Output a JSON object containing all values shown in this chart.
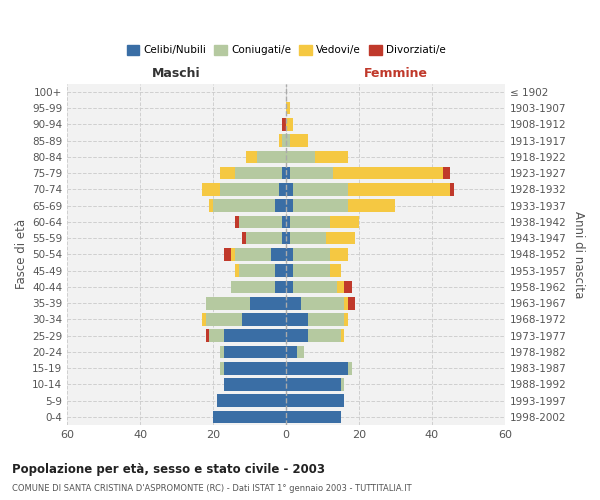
{
  "age_groups": [
    "0-4",
    "5-9",
    "10-14",
    "15-19",
    "20-24",
    "25-29",
    "30-34",
    "35-39",
    "40-44",
    "45-49",
    "50-54",
    "55-59",
    "60-64",
    "65-69",
    "70-74",
    "75-79",
    "80-84",
    "85-89",
    "90-94",
    "95-99",
    "100+"
  ],
  "birth_years": [
    "1998-2002",
    "1993-1997",
    "1988-1992",
    "1983-1987",
    "1978-1982",
    "1973-1977",
    "1968-1972",
    "1963-1967",
    "1958-1962",
    "1953-1957",
    "1948-1952",
    "1943-1947",
    "1938-1942",
    "1933-1937",
    "1928-1932",
    "1923-1927",
    "1918-1922",
    "1913-1917",
    "1908-1912",
    "1903-1907",
    "≤ 1902"
  ],
  "maschi": {
    "celibi": [
      20,
      19,
      17,
      17,
      17,
      17,
      12,
      10,
      3,
      3,
      4,
      1,
      1,
      3,
      2,
      1,
      0,
      0,
      0,
      0,
      0
    ],
    "coniugati": [
      0,
      0,
      0,
      1,
      1,
      4,
      10,
      12,
      12,
      10,
      10,
      10,
      12,
      17,
      16,
      13,
      8,
      1,
      0,
      0,
      0
    ],
    "vedovi": [
      0,
      0,
      0,
      0,
      0,
      0,
      1,
      0,
      0,
      1,
      1,
      0,
      0,
      1,
      5,
      4,
      3,
      1,
      0,
      0,
      0
    ],
    "divorziati": [
      0,
      0,
      0,
      0,
      0,
      1,
      0,
      0,
      0,
      0,
      2,
      1,
      1,
      0,
      0,
      0,
      0,
      0,
      1,
      0,
      0
    ]
  },
  "femmine": {
    "nubili": [
      15,
      16,
      15,
      17,
      3,
      6,
      6,
      4,
      2,
      2,
      2,
      1,
      1,
      2,
      2,
      1,
      0,
      0,
      0,
      0,
      0
    ],
    "coniugate": [
      0,
      0,
      1,
      1,
      2,
      9,
      10,
      12,
      12,
      10,
      10,
      10,
      11,
      15,
      15,
      12,
      8,
      1,
      0,
      0,
      0
    ],
    "vedove": [
      0,
      0,
      0,
      0,
      0,
      1,
      1,
      1,
      2,
      3,
      5,
      8,
      8,
      13,
      28,
      30,
      9,
      5,
      2,
      1,
      0
    ],
    "divorziate": [
      0,
      0,
      0,
      0,
      0,
      0,
      0,
      2,
      2,
      0,
      0,
      0,
      0,
      0,
      1,
      2,
      0,
      0,
      0,
      0,
      0
    ]
  },
  "color_celibi": "#3a6ea5",
  "color_coniugati": "#b5c9a0",
  "color_vedovi": "#f5c842",
  "color_divorziati": "#c0392b",
  "bg_color": "#f2f2f2",
  "grid_color": "#cccccc",
  "title_main": "Popolazione per età, sesso e stato civile - 2003",
  "title_sub": "COMUNE DI SANTA CRISTINA D'ASPROMONTE (RC) - Dati ISTAT 1° gennaio 2003 - TUTTITALIA.IT",
  "xlabel_left": "Maschi",
  "xlabel_right": "Femmine",
  "ylabel_left": "Fasce di età",
  "ylabel_right": "Anni di nascita",
  "xlim": 60,
  "legend_labels": [
    "Celibi/Nubili",
    "Coniugati/e",
    "Vedovi/e",
    "Divorziati/e"
  ]
}
